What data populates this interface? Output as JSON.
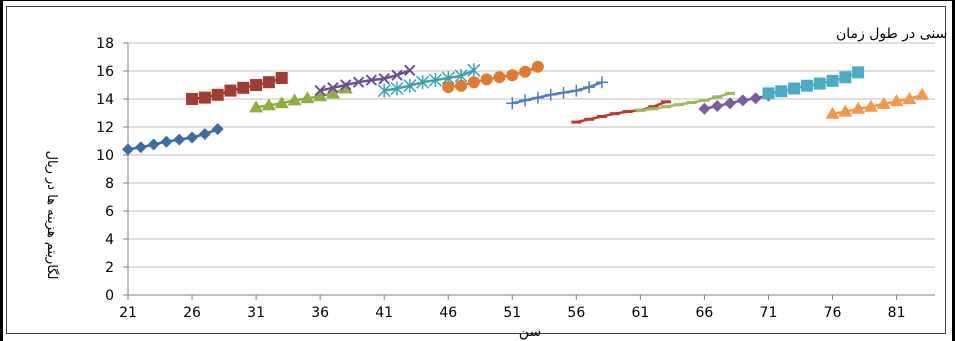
{
  "chart_data": {
    "type": "scatter",
    "title": "نمودار هزینه های بهداشت و سلامت خانوارها بر حسب طبقات سنی در طول زمان",
    "xlabel": "سن",
    "ylabel": "لگاریتم هزینه ها در ریال",
    "xlim": [
      21,
      84
    ],
    "ylim": [
      0,
      18
    ],
    "x_ticks": [
      21,
      26,
      31,
      36,
      41,
      46,
      51,
      56,
      61,
      66,
      71,
      76,
      81
    ],
    "y_ticks": [
      0,
      2,
      4,
      6,
      8,
      10,
      12,
      14,
      16,
      18
    ],
    "grid": "horizontal",
    "series": [
      {
        "color": "#3A6EA5",
        "marker": "diamond",
        "x": [
          21,
          22,
          23,
          24,
          25,
          26,
          27,
          28
        ],
        "y": [
          10.4,
          10.55,
          10.75,
          10.95,
          11.1,
          11.25,
          11.5,
          11.85
        ]
      },
      {
        "color": "#A23B32",
        "marker": "square",
        "x": [
          26,
          27,
          28,
          29,
          30,
          31,
          32,
          33
        ],
        "y": [
          14.0,
          14.1,
          14.3,
          14.6,
          14.8,
          15.0,
          15.2,
          15.5
        ]
      },
      {
        "color": "#8FAE3C",
        "marker": "triangle",
        "x": [
          31,
          32,
          33,
          34,
          35,
          36,
          37,
          38
        ],
        "y": [
          13.4,
          13.55,
          13.7,
          13.9,
          14.05,
          14.2,
          14.4,
          14.75
        ]
      },
      {
        "color": "#6B4E9B",
        "marker": "x",
        "x": [
          36,
          37,
          38,
          39,
          40,
          41,
          42,
          43
        ],
        "y": [
          14.6,
          14.8,
          15.0,
          15.2,
          15.35,
          15.45,
          15.7,
          16.05
        ]
      },
      {
        "color": "#3AA0B8",
        "marker": "star",
        "x": [
          41,
          42,
          43,
          44,
          45,
          46,
          47,
          48
        ],
        "y": [
          14.6,
          14.75,
          14.95,
          15.2,
          15.35,
          15.5,
          15.65,
          16.05
        ]
      },
      {
        "color": "#E07A2E",
        "marker": "circle",
        "x": [
          46,
          47,
          48,
          49,
          50,
          51,
          52,
          53
        ],
        "y": [
          14.85,
          14.95,
          15.2,
          15.4,
          15.55,
          15.7,
          15.95,
          16.3
        ]
      },
      {
        "color": "#4A7EC8",
        "marker": "plus",
        "x": [
          51,
          52,
          53,
          54,
          55,
          56,
          57,
          58
        ],
        "y": [
          13.7,
          13.9,
          14.1,
          14.3,
          14.45,
          14.6,
          14.85,
          15.2
        ]
      },
      {
        "color": "#C0392B",
        "marker": "dash",
        "x": [
          56,
          57,
          58,
          59,
          60,
          61,
          62,
          63
        ],
        "y": [
          12.35,
          12.55,
          12.75,
          12.95,
          13.1,
          13.2,
          13.45,
          13.8
        ]
      },
      {
        "color": "#9BBB59",
        "marker": "dash",
        "x": [
          61,
          62,
          63,
          64,
          65,
          66,
          67,
          68
        ],
        "y": [
          13.2,
          13.3,
          13.45,
          13.6,
          13.75,
          13.9,
          14.15,
          14.4
        ]
      },
      {
        "color": "#7D5BA6",
        "marker": "diamond",
        "x": [
          66,
          67,
          68,
          69,
          70,
          71
        ],
        "y": [
          13.3,
          13.5,
          13.7,
          13.9,
          14.05,
          14.25
        ]
      },
      {
        "color": "#4BACC6",
        "marker": "square",
        "x": [
          71,
          72,
          73,
          74,
          75,
          76,
          77,
          78
        ],
        "y": [
          14.4,
          14.55,
          14.75,
          14.95,
          15.1,
          15.3,
          15.55,
          15.9
        ]
      },
      {
        "color": "#F79646",
        "marker": "triangle",
        "x": [
          76,
          77,
          78,
          79,
          80,
          81,
          82,
          83
        ],
        "y": [
          12.95,
          13.1,
          13.3,
          13.45,
          13.65,
          13.85,
          14.0,
          14.3
        ]
      }
    ]
  }
}
